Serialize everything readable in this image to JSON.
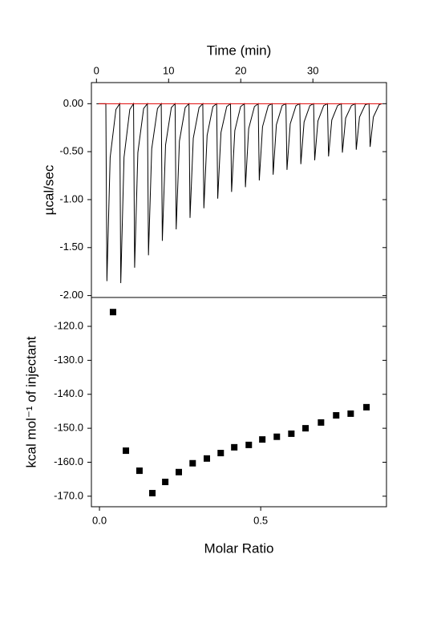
{
  "chart_data": [
    {
      "type": "line",
      "xlabel": "Time (min)",
      "ylabel": "µcal/sec",
      "xlim": [
        -0.7,
        40.2
      ],
      "xticks": [
        0,
        10,
        20,
        30
      ],
      "ylim": [
        -2.02,
        0.22
      ],
      "yticks": [
        {
          "value": 0,
          "label": "0.00"
        },
        {
          "value": -0.5,
          "label": "-0.50"
        },
        {
          "value": -1,
          "label": "-1.00"
        },
        {
          "value": -1.5,
          "label": "-1.50"
        },
        {
          "value": -2,
          "label": "-2.00"
        }
      ],
      "series": [
        {
          "color": "#000000",
          "x": [
            0,
            1.3,
            1.45,
            1.9,
            2.7,
            3.22,
            3.37,
            3.82,
            4.62,
            5.14,
            5.29,
            5.74,
            6.54,
            7.06,
            7.21,
            7.66,
            8.46,
            8.98,
            9.13,
            9.58,
            10.38,
            10.9,
            11.05,
            11.5,
            12.3,
            12.82,
            12.97,
            13.42,
            14.22,
            14.74,
            14.89,
            15.34,
            16.14,
            16.66,
            16.81,
            17.26,
            18.06,
            18.58,
            18.73,
            19.18,
            19.98,
            20.5,
            20.65,
            21.1,
            21.9,
            22.42,
            22.57,
            23.02,
            23.82,
            24.34,
            24.49,
            24.94,
            25.74,
            26.26,
            26.41,
            26.86,
            27.66,
            28.18,
            28.33,
            28.78,
            29.58,
            30.1,
            30.25,
            30.7,
            31.5,
            32.02,
            32.17,
            32.62,
            33.42,
            33.94,
            34.09,
            34.54,
            35.34,
            35.86,
            36.01,
            36.46,
            37.26,
            37.78,
            37.93,
            38.38,
            39.18,
            39.6
          ],
          "values": [
            0,
            0,
            -1.85,
            -0.56,
            -0.06,
            0,
            -1.87,
            -0.56,
            -0.06,
            0,
            -1.71,
            -0.51,
            -0.05,
            0,
            -1.58,
            -0.47,
            -0.05,
            0,
            -1.43,
            -0.43,
            -0.04,
            0,
            -1.31,
            -0.39,
            -0.04,
            0,
            -1.19,
            -0.36,
            -0.04,
            0,
            -1.09,
            -0.33,
            -0.03,
            0,
            -0.99,
            -0.3,
            -0.03,
            0,
            -0.92,
            -0.28,
            -0.03,
            0,
            -0.87,
            -0.26,
            -0.03,
            0,
            -0.8,
            -0.24,
            -0.02,
            0,
            -0.74,
            -0.22,
            -0.02,
            0,
            -0.69,
            -0.21,
            -0.02,
            0,
            -0.63,
            -0.19,
            -0.02,
            0,
            -0.59,
            -0.18,
            -0.02,
            0,
            -0.55,
            -0.17,
            -0.02,
            0,
            -0.51,
            -0.15,
            -0.02,
            0,
            -0.48,
            -0.14,
            -0.01,
            0,
            -0.45,
            -0.14,
            -0.01,
            0
          ]
        },
        {
          "color": "#e00000",
          "x": [
            0.3,
            39.6
          ],
          "values": [
            0,
            0
          ]
        }
      ]
    },
    {
      "type": "scatter",
      "xlabel": "Molar Ratio",
      "ylabel": "kcal mol⁻¹ of injectant",
      "xlim": [
        -0.025,
        0.89
      ],
      "xticks": [
        {
          "value": 0,
          "label": "0.0"
        },
        {
          "value": 0.5,
          "label": "0.5"
        }
      ],
      "ylim": [
        -173.1,
        -111.5
      ],
      "yticks": [
        {
          "value": -120,
          "label": "-120.0"
        },
        {
          "value": -130,
          "label": "-130.0"
        },
        {
          "value": -140,
          "label": "-140.0"
        },
        {
          "value": -150,
          "label": "-150.0"
        },
        {
          "value": -160,
          "label": "-160.0"
        },
        {
          "value": -170,
          "label": "-170.0"
        }
      ],
      "color": "#000000",
      "x": [
        0.042,
        0.082,
        0.124,
        0.164,
        0.204,
        0.246,
        0.289,
        0.333,
        0.376,
        0.418,
        0.463,
        0.505,
        0.55,
        0.595,
        0.639,
        0.687,
        0.734,
        0.779,
        0.828
      ],
      "values": [
        -115.8,
        -156.6,
        -162.5,
        -169.1,
        -165.8,
        -162.9,
        -160.3,
        -158.9,
        -157.3,
        -155.6,
        -154.9,
        -153.3,
        -152.5,
        -151.6,
        -150.0,
        -148.3,
        -146.2,
        -145.7,
        -143.8
      ]
    }
  ]
}
